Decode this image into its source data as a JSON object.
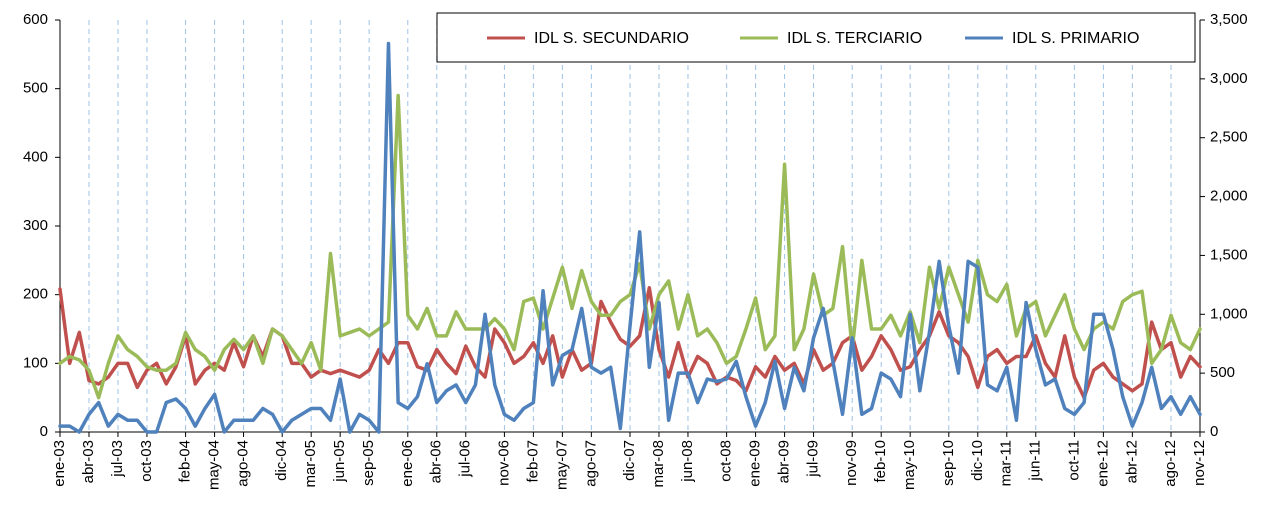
{
  "chart_data": {
    "type": "line",
    "categories": [
      "ene-03",
      null,
      null,
      "abr-03",
      null,
      null,
      "jul-03",
      null,
      null,
      "oct-03",
      null,
      null,
      null,
      "feb-04",
      null,
      null,
      "may-04",
      null,
      null,
      "ago-04",
      null,
      null,
      null,
      "dic-04",
      null,
      null,
      "mar-05",
      null,
      null,
      "jun-05",
      null,
      null,
      "sep-05",
      null,
      null,
      null,
      "ene-06",
      null,
      null,
      "abr-06",
      null,
      null,
      "jul-06",
      null,
      null,
      null,
      "nov-06",
      null,
      null,
      "feb-07",
      null,
      null,
      "may-07",
      null,
      null,
      "ago-07",
      null,
      null,
      null,
      "dic-07",
      null,
      null,
      "mar-08",
      null,
      null,
      "jun-08",
      null,
      null,
      null,
      "oct-08",
      null,
      null,
      "ene-09",
      null,
      null,
      "abr-09",
      null,
      null,
      "jul-09",
      null,
      null,
      null,
      "nov-09",
      null,
      null,
      "feb-10",
      null,
      null,
      "may-10",
      null,
      null,
      null,
      "sep-10",
      null,
      null,
      "dic-10",
      null,
      null,
      "mar-11",
      null,
      null,
      "jun-11",
      null,
      null,
      null,
      "oct-11",
      null,
      null,
      "ene-12",
      null,
      null,
      "abr-12",
      null,
      null,
      null,
      "ago-12",
      null,
      null,
      "nov-12"
    ],
    "series": [
      {
        "name": "IDL S. SECUNDARIO",
        "color": "#c0504d",
        "values": [
          208,
          100,
          145,
          75,
          70,
          80,
          100,
          100,
          65,
          90,
          100,
          70,
          95,
          140,
          70,
          90,
          100,
          90,
          130,
          95,
          140,
          110,
          150,
          140,
          100,
          100,
          80,
          90,
          85,
          90,
          85,
          80,
          90,
          120,
          100,
          130,
          130,
          95,
          90,
          120,
          100,
          85,
          125,
          95,
          80,
          150,
          130,
          100,
          110,
          130,
          100,
          140,
          80,
          120,
          90,
          100,
          190,
          160,
          135,
          125,
          140,
          210,
          120,
          80,
          130,
          80,
          110,
          100,
          70,
          80,
          75,
          60,
          95,
          80,
          110,
          90,
          100,
          70,
          120,
          90,
          100,
          130,
          140,
          90,
          110,
          140,
          120,
          90,
          95,
          120,
          140,
          175,
          140,
          130,
          110,
          65,
          110,
          120,
          100,
          110,
          110,
          140,
          100,
          80,
          140,
          80,
          50,
          90,
          100,
          80,
          70,
          60,
          70,
          160,
          120,
          130,
          80,
          110,
          95
        ]
      },
      {
        "name": "IDL S. TERCIARIO",
        "color": "#9bbb59",
        "values": [
          100,
          110,
          105,
          90,
          50,
          100,
          140,
          120,
          110,
          95,
          90,
          90,
          100,
          145,
          120,
          110,
          90,
          120,
          135,
          120,
          140,
          100,
          150,
          140,
          120,
          100,
          130,
          90,
          260,
          140,
          145,
          150,
          140,
          150,
          160,
          490,
          170,
          150,
          180,
          140,
          140,
          175,
          150,
          150,
          150,
          165,
          150,
          120,
          190,
          195,
          150,
          195,
          240,
          180,
          235,
          190,
          170,
          170,
          190,
          200,
          245,
          150,
          200,
          220,
          150,
          200,
          140,
          150,
          130,
          100,
          110,
          150,
          195,
          120,
          140,
          390,
          120,
          150,
          230,
          170,
          180,
          270,
          120,
          250,
          150,
          150,
          170,
          140,
          175,
          130,
          240,
          180,
          240,
          200,
          160,
          250,
          200,
          190,
          215,
          140,
          180,
          190,
          140,
          170,
          200,
          150,
          120,
          150,
          160,
          150,
          190,
          200,
          205,
          100,
          120,
          170,
          130,
          120,
          150
        ]
      },
      {
        "name": "IDL S. PRIMARIO",
        "color": "#4f81bd",
        "axis": "y2",
        "values": [
          50,
          50,
          0,
          150,
          250,
          50,
          150,
          100,
          100,
          0,
          0,
          250,
          280,
          200,
          50,
          200,
          320,
          0,
          100,
          100,
          100,
          200,
          150,
          0,
          100,
          150,
          200,
          200,
          100,
          450,
          0,
          150,
          100,
          0,
          3300,
          250,
          200,
          300,
          580,
          250,
          350,
          400,
          250,
          400,
          1000,
          400,
          150,
          100,
          200,
          250,
          1200,
          400,
          650,
          700,
          1050,
          550,
          500,
          550,
          30,
          900,
          1700,
          550,
          1100,
          100,
          500,
          500,
          250,
          450,
          430,
          450,
          600,
          300,
          50,
          250,
          600,
          200,
          550,
          350,
          800,
          1050,
          600,
          150,
          800,
          150,
          200,
          500,
          450,
          300,
          1000,
          350,
          850,
          1450,
          900,
          500,
          1450,
          1400,
          400,
          350,
          550,
          100,
          1100,
          700,
          400,
          450,
          200,
          150,
          250,
          1000,
          1000,
          700,
          300,
          50,
          250,
          550,
          200,
          300,
          150,
          300,
          150
        ]
      }
    ],
    "ylim": [
      0,
      600
    ],
    "yticks": [
      0,
      100,
      200,
      300,
      400,
      500,
      600
    ],
    "y2lim": [
      0,
      3500
    ],
    "y2ticks": [
      0,
      500,
      {
        "value": 1000,
        "label": "1,000"
      },
      {
        "value": 1500,
        "label": "1,500"
      },
      {
        "value": 2000,
        "label": "2,000"
      },
      {
        "value": 2500,
        "label": "2,500"
      },
      {
        "value": 3000,
        "label": "3,000"
      },
      {
        "value": 3500,
        "label": "3,500"
      }
    ],
    "grid": true
  }
}
